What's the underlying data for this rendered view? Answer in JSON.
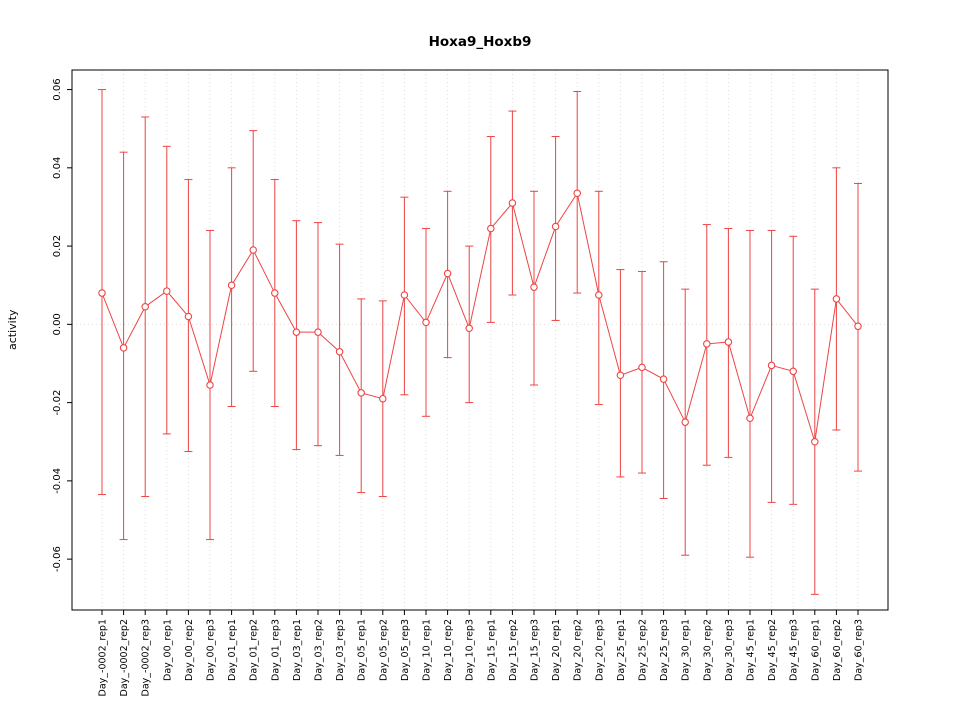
{
  "chart_data": {
    "type": "line",
    "title": "Hoxa9_Hoxb9",
    "xlabel": "",
    "ylabel": "activity",
    "ylim": [
      -0.073,
      0.065
    ],
    "yticks": [
      -0.06,
      -0.04,
      -0.02,
      0.0,
      0.02,
      0.04,
      0.06
    ],
    "grid": "vertical-dotted-per-category, dotted-zero-line",
    "legend": "none",
    "series_color": "#ee4444",
    "grid_color": "#d9d9d9",
    "zero_line_color": "#e6dcdc",
    "axis_color": "#000000",
    "categories": [
      "Day_-0002_rep1",
      "Day_-0002_rep2",
      "Day_-0002_rep3",
      "Day_00_rep1",
      "Day_00_rep2",
      "Day_00_rep3",
      "Day_01_rep1",
      "Day_01_rep2",
      "Day_01_rep3",
      "Day_03_rep1",
      "Day_03_rep2",
      "Day_03_rep3",
      "Day_05_rep1",
      "Day_05_rep2",
      "Day_05_rep3",
      "Day_10_rep1",
      "Day_10_rep2",
      "Day_10_rep3",
      "Day_15_rep1",
      "Day_15_rep2",
      "Day_15_rep3",
      "Day_20_rep1",
      "Day_20_rep2",
      "Day_20_rep3",
      "Day_25_rep1",
      "Day_25_rep2",
      "Day_25_rep3",
      "Day_30_rep1",
      "Day_30_rep2",
      "Day_30_rep3",
      "Day_45_rep1",
      "Day_45_rep2",
      "Day_45_rep3",
      "Day_60_rep1",
      "Day_60_rep2",
      "Day_60_rep3"
    ],
    "means": [
      0.008,
      -0.006,
      0.0045,
      0.0085,
      0.002,
      -0.0155,
      0.01,
      0.019,
      0.008,
      -0.002,
      -0.002,
      -0.007,
      -0.0175,
      -0.019,
      0.0075,
      0.0005,
      0.013,
      -0.001,
      0.0245,
      0.031,
      0.0095,
      0.025,
      0.0335,
      0.0075,
      -0.013,
      -0.011,
      -0.014,
      -0.025,
      -0.005,
      -0.0045,
      -0.024,
      -0.0105,
      -0.012,
      -0.03,
      0.0065,
      -0.0005
    ],
    "upper": [
      0.06,
      0.044,
      0.053,
      0.0455,
      0.037,
      0.024,
      0.04,
      0.0495,
      0.037,
      0.0265,
      0.026,
      0.0205,
      0.0065,
      0.006,
      0.0325,
      0.0245,
      0.034,
      0.02,
      0.048,
      0.0545,
      0.034,
      0.048,
      0.0595,
      0.034,
      0.014,
      0.0135,
      0.016,
      0.009,
      0.0255,
      0.0245,
      0.024,
      0.024,
      0.0225,
      0.009,
      0.04,
      0.036
    ],
    "lower": [
      -0.0435,
      -0.055,
      -0.044,
      -0.028,
      -0.0325,
      -0.055,
      -0.021,
      -0.012,
      -0.021,
      -0.032,
      -0.031,
      -0.0335,
      -0.043,
      -0.044,
      -0.018,
      -0.0235,
      -0.0085,
      -0.02,
      0.0005,
      0.0075,
      -0.0155,
      0.001,
      0.008,
      -0.0205,
      -0.039,
      -0.038,
      -0.0445,
      -0.059,
      -0.036,
      -0.034,
      -0.0595,
      -0.0455,
      -0.046,
      -0.069,
      -0.027,
      -0.0375
    ]
  }
}
